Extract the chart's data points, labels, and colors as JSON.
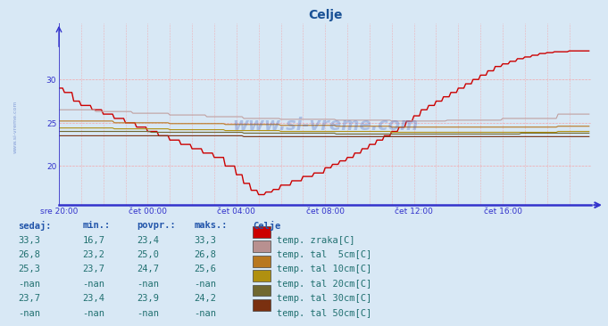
{
  "title": "Celje",
  "title_color": "#1a5296",
  "bg_color": "#d8e8f5",
  "plot_bg_color": "#d8e8f5",
  "xmin": 0,
  "xmax": 288,
  "ymin": 15.5,
  "ymax": 36.5,
  "yticks": [
    20,
    25,
    30
  ],
  "xtick_labels": [
    "sre 20:00",
    "čet 00:00",
    "čet 04:00",
    "čet 08:00",
    "čet 12:00",
    "čet 16:00"
  ],
  "xtick_pos": [
    0,
    48,
    96,
    144,
    192,
    240
  ],
  "grid_color": "#ff8888",
  "axis_color": "#3333cc",
  "line_colors": [
    "#cc0000",
    "#c0a0a0",
    "#b87820",
    "#b09010",
    "#706830",
    "#7a3010"
  ],
  "legend_labels": [
    "temp. zraka[C]",
    "temp. tal  5cm[C]",
    "temp. tal 10cm[C]",
    "temp. tal 20cm[C]",
    "temp. tal 30cm[C]",
    "temp. tal 50cm[C]"
  ],
  "legend_colors": [
    "#cc0000",
    "#b89090",
    "#b87820",
    "#b09010",
    "#706830",
    "#7a3010"
  ],
  "table_header_color": "#2255aa",
  "table_text_color": "#207070",
  "table_headers": [
    "sedaj:",
    "min.:",
    "povpr.:",
    "maks.:",
    "Celje"
  ],
  "table_data": [
    [
      "33,3",
      "16,7",
      "23,4",
      "33,3"
    ],
    [
      "26,8",
      "23,2",
      "25,0",
      "26,8"
    ],
    [
      "25,3",
      "23,7",
      "24,7",
      "25,6"
    ],
    [
      "-nan",
      "-nan",
      "-nan",
      "-nan"
    ],
    [
      "23,7",
      "23,4",
      "23,9",
      "24,2"
    ],
    [
      "-nan",
      "-nan",
      "-nan",
      "-nan"
    ]
  ],
  "watermark": "www.si-vreme.com",
  "side_text": "www.si-vreme.com"
}
